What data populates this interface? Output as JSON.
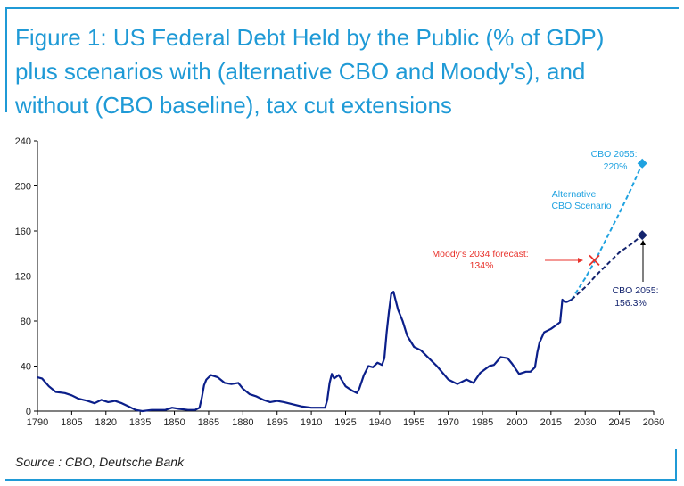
{
  "title_lines": [
    "Figure 1: US Federal Debt Held by the Public (% of GDP)",
    "plus scenarios with (alternative CBO and Moody's), and",
    "without (CBO baseline), tax cut extensions"
  ],
  "source": "Source : CBO, Deutsche Bank",
  "colors": {
    "accent": "#1f9ad6",
    "history": "#0b1f8a",
    "alternative": "#1fa2e0",
    "baseline": "#14246e",
    "moodys": "#e8322b",
    "axis": "#000000"
  },
  "chart_data": {
    "type": "line",
    "xlim": [
      1790,
      2060
    ],
    "ylim": [
      0,
      240
    ],
    "xticks": [
      1790,
      1805,
      1820,
      1835,
      1850,
      1865,
      1880,
      1895,
      1910,
      1925,
      1940,
      1955,
      1970,
      1985,
      2000,
      2015,
      2030,
      2045,
      2060
    ],
    "yticks": [
      0,
      40,
      80,
      120,
      160,
      200,
      240
    ],
    "grid": false,
    "series": [
      {
        "key": "history",
        "style": "solid",
        "points": [
          [
            1790,
            30
          ],
          [
            1792,
            29
          ],
          [
            1795,
            22
          ],
          [
            1798,
            17
          ],
          [
            1802,
            16
          ],
          [
            1805,
            14
          ],
          [
            1808,
            11
          ],
          [
            1812,
            9
          ],
          [
            1815,
            7
          ],
          [
            1818,
            10
          ],
          [
            1821,
            8
          ],
          [
            1824,
            9
          ],
          [
            1827,
            7
          ],
          [
            1830,
            4
          ],
          [
            1833,
            1
          ],
          [
            1836,
            0
          ],
          [
            1840,
            1
          ],
          [
            1843,
            1
          ],
          [
            1846,
            1
          ],
          [
            1849,
            3
          ],
          [
            1852,
            2
          ],
          [
            1856,
            1
          ],
          [
            1859,
            1
          ],
          [
            1861,
            3
          ],
          [
            1862,
            12
          ],
          [
            1863,
            23
          ],
          [
            1864,
            28
          ],
          [
            1866,
            32
          ],
          [
            1869,
            30
          ],
          [
            1872,
            25
          ],
          [
            1875,
            24
          ],
          [
            1878,
            25
          ],
          [
            1880,
            20
          ],
          [
            1883,
            15
          ],
          [
            1886,
            13
          ],
          [
            1889,
            10
          ],
          [
            1892,
            8
          ],
          [
            1895,
            9
          ],
          [
            1898,
            8
          ],
          [
            1902,
            6
          ],
          [
            1906,
            4
          ],
          [
            1910,
            3
          ],
          [
            1913,
            3
          ],
          [
            1916,
            3
          ],
          [
            1917,
            10
          ],
          [
            1918,
            25
          ],
          [
            1919,
            33
          ],
          [
            1920,
            29
          ],
          [
            1922,
            32
          ],
          [
            1925,
            22
          ],
          [
            1928,
            18
          ],
          [
            1930,
            16
          ],
          [
            1931,
            20
          ],
          [
            1933,
            32
          ],
          [
            1935,
            40
          ],
          [
            1937,
            39
          ],
          [
            1939,
            43
          ],
          [
            1941,
            41
          ],
          [
            1942,
            47
          ],
          [
            1943,
            70
          ],
          [
            1944,
            88
          ],
          [
            1945,
            104
          ],
          [
            1946,
            106
          ],
          [
            1948,
            90
          ],
          [
            1950,
            80
          ],
          [
            1952,
            67
          ],
          [
            1955,
            57
          ],
          [
            1958,
            54
          ],
          [
            1961,
            48
          ],
          [
            1965,
            40
          ],
          [
            1970,
            28
          ],
          [
            1974,
            24
          ],
          [
            1978,
            28
          ],
          [
            1981,
            25
          ],
          [
            1984,
            34
          ],
          [
            1988,
            40
          ],
          [
            1990,
            41
          ],
          [
            1993,
            48
          ],
          [
            1996,
            47
          ],
          [
            1998,
            42
          ],
          [
            2001,
            33
          ],
          [
            2004,
            35
          ],
          [
            2006,
            35
          ],
          [
            2008,
            39
          ],
          [
            2009,
            52
          ],
          [
            2010,
            61
          ],
          [
            2012,
            70
          ],
          [
            2015,
            73
          ],
          [
            2017,
            76
          ],
          [
            2019,
            79
          ],
          [
            2020,
            99
          ],
          [
            2021,
            97
          ],
          [
            2022,
            97
          ],
          [
            2024,
            99
          ]
        ]
      },
      {
        "key": "alternative",
        "style": "dashed",
        "points": [
          [
            2024,
            99
          ],
          [
            2030,
            118
          ],
          [
            2035,
            136
          ],
          [
            2040,
            156
          ],
          [
            2045,
            176
          ],
          [
            2050,
            197
          ],
          [
            2055,
            220
          ]
        ]
      },
      {
        "key": "baseline",
        "style": "dashed",
        "points": [
          [
            2024,
            99
          ],
          [
            2030,
            110
          ],
          [
            2035,
            121
          ],
          [
            2040,
            131
          ],
          [
            2045,
            141
          ],
          [
            2050,
            148
          ],
          [
            2055,
            156.3
          ]
        ]
      }
    ],
    "markers": [
      {
        "key": "cbo-2055-alternative-marker",
        "shape": "diamond",
        "x": 2055,
        "y": 220,
        "color": "#1fa2e0"
      },
      {
        "key": "cbo-2055-baseline-marker",
        "shape": "diamond",
        "x": 2055,
        "y": 156.3,
        "color": "#14246e"
      },
      {
        "key": "moodys-2034-marker",
        "shape": "cross",
        "x": 2034,
        "y": 134,
        "color": "#e8322b"
      }
    ],
    "annotations": [
      {
        "key": "cbo-2055-alt-label",
        "lines": [
          "CBO 2055:",
          "220%"
        ],
        "color": "#1fa2e0"
      },
      {
        "key": "alternative-scenario-label",
        "lines": [
          "Alternative",
          "CBO Scenario"
        ],
        "color": "#1fa2e0"
      },
      {
        "key": "moodys-label",
        "lines": [
          "Moody's 2034 forecast:",
          "134%"
        ],
        "color": "#e8322b"
      },
      {
        "key": "cbo-2055-baseline-label",
        "lines": [
          "CBO 2055:",
          "156.3%"
        ],
        "color": "#14246e"
      }
    ]
  }
}
